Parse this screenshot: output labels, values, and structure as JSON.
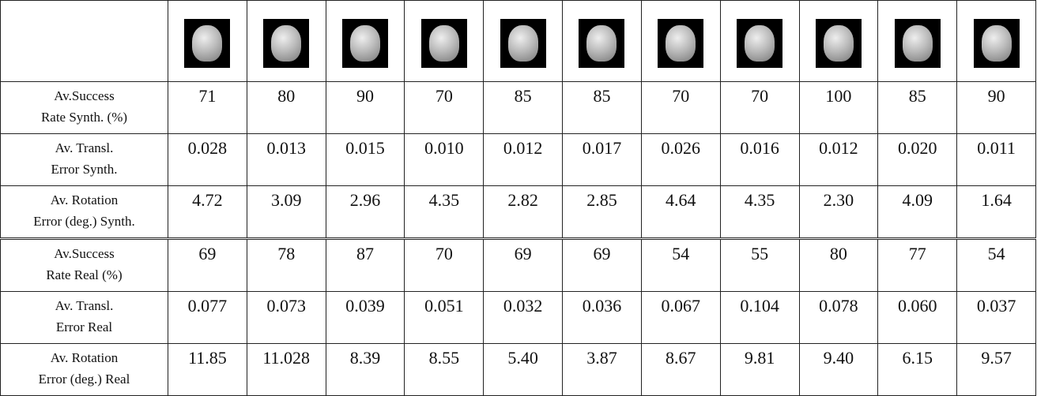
{
  "table": {
    "rows": [
      {
        "label": [
          "Av.Success",
          "Rate Synth. (%)"
        ],
        "values": [
          "71",
          "80",
          "90",
          "70",
          "85",
          "85",
          "70",
          "70",
          "100",
          "85",
          "90"
        ]
      },
      {
        "label": [
          "Av. Transl.",
          "Error Synth."
        ],
        "values": [
          "0.028",
          "0.013",
          "0.015",
          "0.010",
          "0.012",
          "0.017",
          "0.026",
          "0.016",
          "0.012",
          "0.020",
          "0.011"
        ]
      },
      {
        "label": [
          "Av. Rotation",
          "Error (deg.) Synth."
        ],
        "values": [
          "4.72",
          "3.09",
          "2.96",
          "4.35",
          "2.82",
          "2.85",
          "4.64",
          "4.35",
          "2.30",
          "4.09",
          "1.64"
        ]
      },
      {
        "label": [
          "Av.Success",
          "Rate Real (%)"
        ],
        "values": [
          "69",
          "78",
          "87",
          "70",
          "69",
          "69",
          "54",
          "55",
          "80",
          "77",
          "54"
        ]
      },
      {
        "label": [
          "Av. Transl.",
          "Error Real"
        ],
        "values": [
          "0.077",
          "0.073",
          "0.039",
          "0.051",
          "0.032",
          "0.036",
          "0.067",
          "0.104",
          "0.078",
          "0.060",
          "0.037"
        ]
      },
      {
        "label": [
          "Av. Rotation",
          "Error (deg.) Real"
        ],
        "values": [
          "11.85",
          "11.028",
          "8.39",
          "8.55",
          "5.40",
          "3.87",
          "8.67",
          "9.81",
          "9.40",
          "6.15",
          "9.57"
        ]
      }
    ]
  }
}
